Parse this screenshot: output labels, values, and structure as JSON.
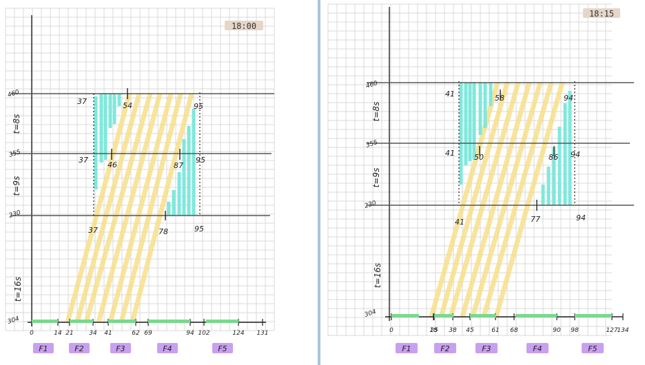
{
  "panels": [
    {
      "time_badge": "18:00",
      "axis_labels": [
        "0",
        "14",
        "21",
        "34",
        "41",
        "62",
        "69",
        "94",
        "102",
        "124",
        "131"
      ],
      "level_labels": [
        "460",
        "355",
        "230",
        "304"
      ],
      "interval_labels": [
        "t=8s",
        "t=9s",
        "t=16s"
      ],
      "phases": [
        "F1",
        "F2",
        "F3",
        "F4",
        "F5"
      ],
      "top_line_labels": [
        "37",
        "54",
        "95"
      ],
      "mid_line_labels": [
        "37",
        "46",
        "87",
        "95"
      ],
      "low_line_labels": [
        "37",
        "78",
        "95"
      ]
    },
    {
      "time_badge": "18:15",
      "axis_labels": [
        "0",
        "18",
        "25",
        "38",
        "45",
        "61",
        "68",
        "90",
        "98",
        "127",
        "134"
      ],
      "level_labels": [
        "460",
        "355",
        "230",
        "304"
      ],
      "interval_labels": [
        "t=8s",
        "t=9s",
        "t=16s"
      ],
      "phases": [
        "F1",
        "F2",
        "F3",
        "F4",
        "F5"
      ],
      "top_line_labels": [
        "41",
        "58",
        "94"
      ],
      "mid_line_labels": [
        "41",
        "50",
        "86",
        "94"
      ],
      "low_line_labels": [
        "41",
        "77",
        "94"
      ]
    }
  ],
  "colors": {
    "grid": "#d9d9d9",
    "green_bar": "#7bd88f",
    "yellow_band": "#f7e08a",
    "cyan_bar": "#7fe8dc",
    "phase_box": "#c9a0f0",
    "badge": "#e5d6c8"
  }
}
